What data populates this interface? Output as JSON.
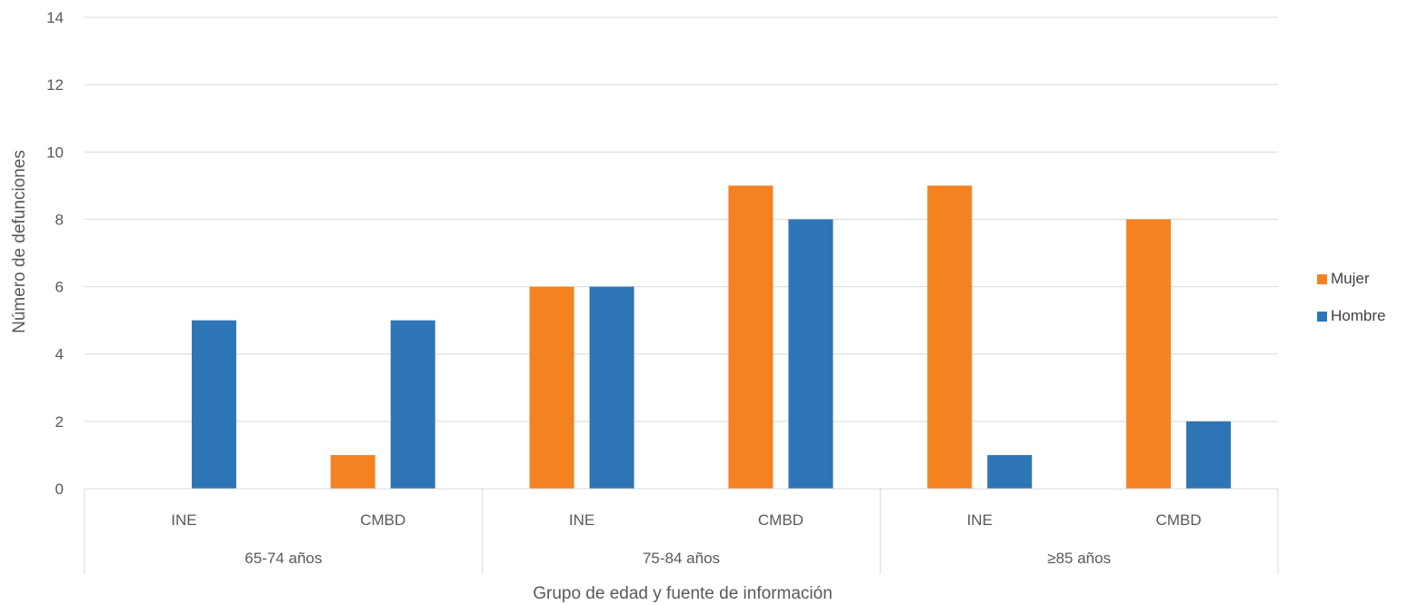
{
  "chart_data": {
    "type": "bar",
    "title": "",
    "xlabel": "Grupo de edad y fuente de información",
    "ylabel": "Número de defunciones",
    "ylim": [
      0,
      14
    ],
    "yticks": [
      "0",
      "2",
      "4",
      "6",
      "8",
      "10",
      "12",
      "14"
    ],
    "grid": true,
    "legend_position": "right",
    "groups": [
      {
        "label": "65-74 años",
        "categories": [
          "INE",
          "CMBD"
        ]
      },
      {
        "label": "75-84 años",
        "categories": [
          "INE",
          "CMBD"
        ]
      },
      {
        "label": "≥85 años",
        "categories": [
          "INE",
          "CMBD"
        ]
      }
    ],
    "series": [
      {
        "name": "Mujer",
        "color": "#F58220",
        "values": [
          0,
          1,
          6,
          9,
          9,
          8
        ]
      },
      {
        "name": "Hombre",
        "color": "#2E75B6",
        "values": [
          5,
          5,
          6,
          8,
          1,
          2
        ]
      }
    ]
  }
}
